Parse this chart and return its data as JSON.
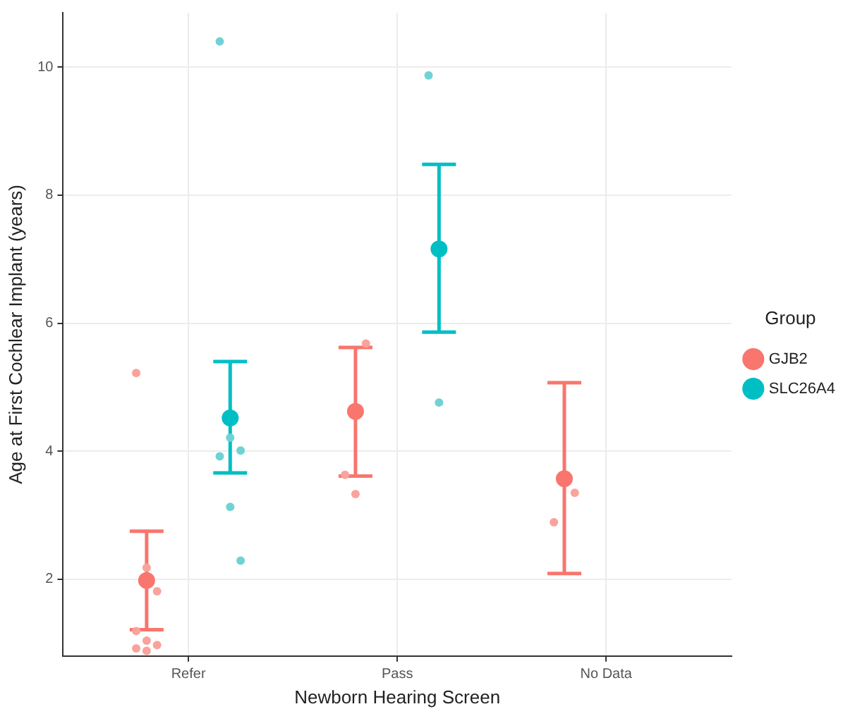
{
  "chart_data": {
    "type": "scatter",
    "xlabel": "Newborn Hearing Screen",
    "ylabel": "Age at First Cochlear Implant (years)",
    "legend_title": "Group",
    "legend": "right",
    "grid": true,
    "marker": "circle",
    "categories": [
      "Refer",
      "Pass",
      "No Data"
    ],
    "ylim": [
      0.8,
      10.85
    ],
    "yticks": [
      2,
      4,
      6,
      8,
      10
    ],
    "series": [
      {
        "name": "GJB2",
        "color": "#f8766d",
        "values": [
          1.98,
          4.62,
          3.57
        ],
        "errors": [
          [
            1.21,
            2.75
          ],
          [
            3.61,
            5.62
          ],
          [
            2.09,
            5.07
          ]
        ]
      },
      {
        "name": "SLC26A4",
        "color": "#00bfc4",
        "values": [
          4.52,
          7.16,
          null
        ],
        "errors": [
          [
            3.66,
            5.4
          ],
          [
            5.86,
            8.48
          ],
          null
        ]
      },
      {
        "color": "#f9a39c",
        "x": [
          "Refer",
          "Refer",
          "Refer",
          "Refer",
          "Refer",
          "Refer",
          "Refer",
          "Refer",
          "Pass",
          "Pass",
          "Pass",
          "No Data",
          "No Data"
        ],
        "values": [
          5.22,
          2.18,
          1.81,
          1.19,
          1.04,
          0.97,
          0.92,
          0.88,
          5.68,
          3.63,
          3.33,
          3.35,
          2.89
        ]
      },
      {
        "color": "#6fd3d5",
        "x": [
          "Refer",
          "Refer",
          "Refer",
          "Refer",
          "Refer",
          "Refer",
          "Pass",
          "Pass"
        ],
        "values": [
          10.4,
          4.21,
          4.01,
          3.92,
          3.13,
          2.29,
          9.87,
          4.76
        ]
      }
    ]
  }
}
